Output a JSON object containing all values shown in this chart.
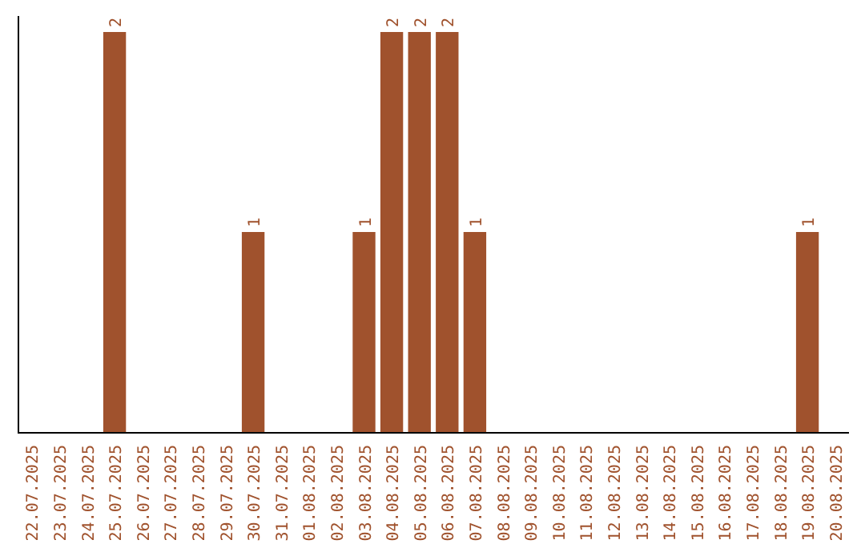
{
  "chart_data": {
    "type": "bar",
    "categories": [
      "22.07.2025",
      "23.07.2025",
      "24.07.2025",
      "25.07.2025",
      "26.07.2025",
      "27.07.2025",
      "28.07.2025",
      "29.07.2025",
      "30.07.2025",
      "31.07.2025",
      "01.08.2025",
      "02.08.2025",
      "03.08.2025",
      "04.08.2025",
      "05.08.2025",
      "06.08.2025",
      "07.08.2025",
      "08.08.2025",
      "09.08.2025",
      "10.08.2025",
      "11.08.2025",
      "12.08.2025",
      "13.08.2025",
      "14.08.2025",
      "15.08.2025",
      "16.08.2025",
      "17.08.2025",
      "18.08.2025",
      "19.08.2025",
      "20.08.2025"
    ],
    "values": [
      0,
      0,
      0,
      2,
      0,
      0,
      0,
      0,
      1,
      0,
      0,
      0,
      1,
      2,
      2,
      2,
      1,
      0,
      0,
      0,
      0,
      0,
      0,
      0,
      0,
      0,
      0,
      0,
      1,
      0
    ],
    "value_labels": [
      null,
      null,
      null,
      "2",
      null,
      null,
      null,
      null,
      "1",
      null,
      null,
      null,
      "1",
      "2",
      "2",
      "2",
      "1",
      null,
      null,
      null,
      null,
      null,
      null,
      null,
      null,
      null,
      null,
      null,
      "1",
      null
    ],
    "color": "#a0522d"
  }
}
